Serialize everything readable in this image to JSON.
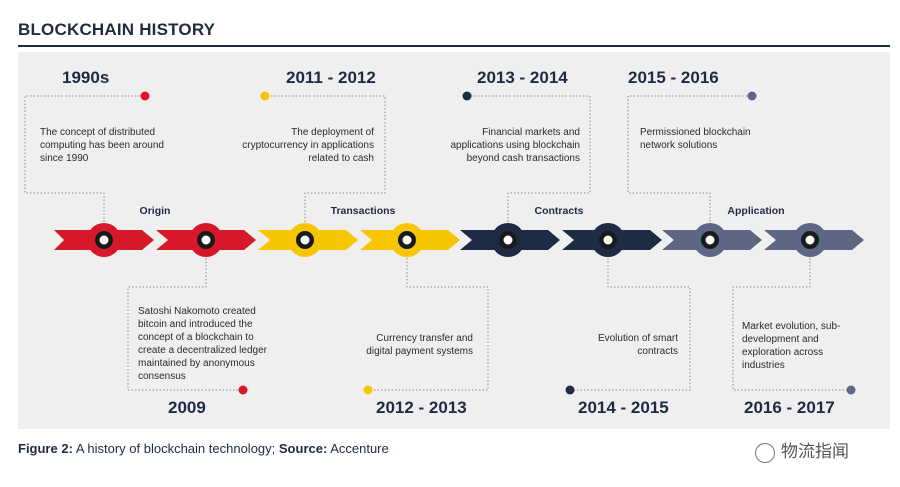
{
  "title": "BLOCKCHAIN HISTORY",
  "caption": {
    "label": "Figure 2:",
    "text": "A history of blockchain technology;",
    "source_label": "Source:",
    "source": "Accenture"
  },
  "watermark": "物流指闻",
  "colors": {
    "red": "#d7182a",
    "yellow": "#f7c600",
    "navy": "#1f2a44",
    "slate": "#5d6682",
    "panel": "#efefef"
  },
  "phases": [
    "Origin",
    "Transactions",
    "Contracts",
    "Application"
  ],
  "events_top": [
    {
      "year": "1990s",
      "text": "The concept of distributed computing has been around since 1990"
    },
    {
      "year": "2011 - 2012",
      "text": "The deployment of cryptocurrency in applications related to cash"
    },
    {
      "year": "2013 - 2014",
      "text": "Financial markets and applications using blockchain beyond cash transactions"
    },
    {
      "year": "2015 - 2016",
      "text": "Permissioned blockchain network solutions"
    }
  ],
  "events_bottom": [
    {
      "year": "2009",
      "text": "Satoshi Nakomoto created bitcoin and introduced the concept of a blockchain to create a decentralized ledger maintained by anonymous consensus"
    },
    {
      "year": "2012 - 2013",
      "text": "Currency transfer and digital payment systems"
    },
    {
      "year": "2014 - 2015",
      "text": "Evolution of smart contracts"
    },
    {
      "year": "2016 - 2017",
      "text": "Market evolution, sub-development and exploration across industries"
    }
  ]
}
